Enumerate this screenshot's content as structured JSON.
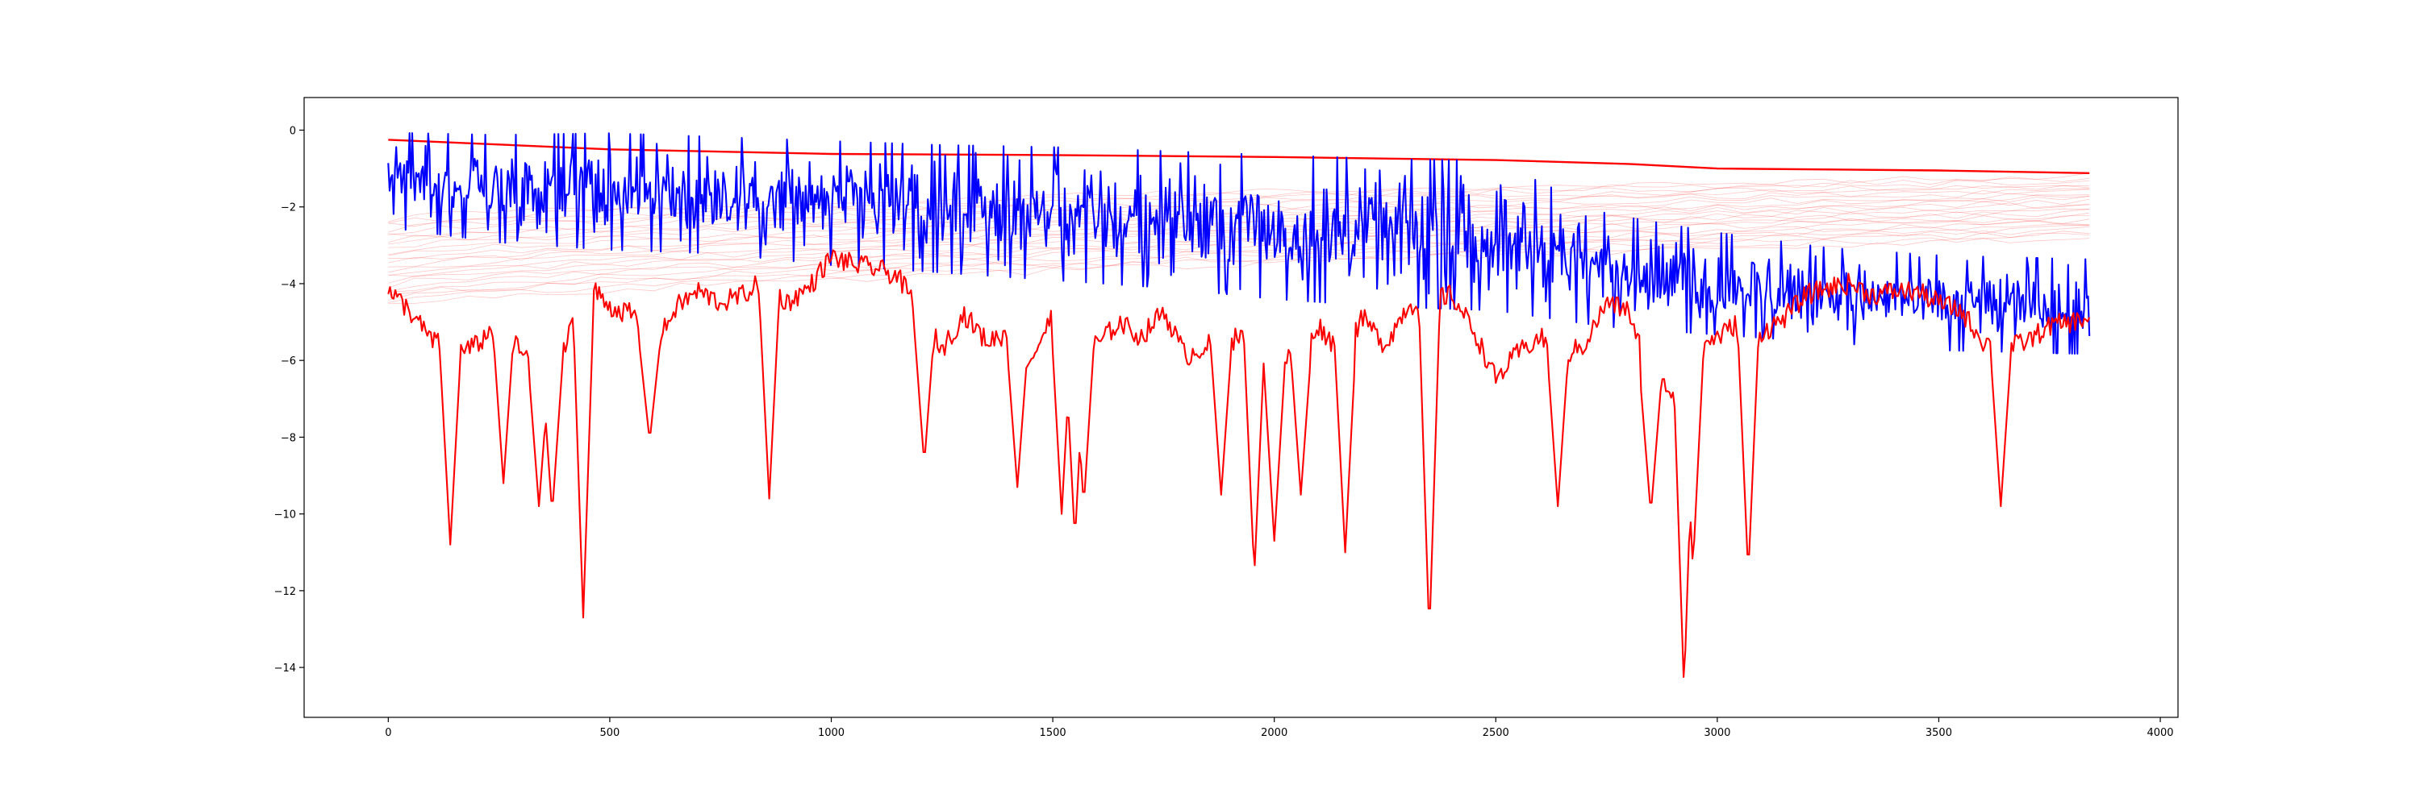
{
  "chart_data": {
    "type": "line",
    "title": "",
    "xlabel": "",
    "ylabel": "",
    "xlim": [
      -190,
      4040
    ],
    "ylim": [
      -15.3,
      0.85
    ],
    "x_ticks": [
      0,
      500,
      1000,
      1500,
      2000,
      2500,
      3000,
      3500,
      4000
    ],
    "y_ticks": [
      0,
      -2,
      -4,
      -6,
      -8,
      -10,
      -12,
      -14
    ],
    "x_tick_labels": [
      "0",
      "500",
      "1000",
      "1500",
      "2000",
      "2500",
      "3000",
      "3500",
      "4000"
    ],
    "y_tick_labels": [
      "0",
      "−2",
      "−4",
      "−6",
      "−8",
      "−10",
      "−12",
      "−14"
    ],
    "grid": false,
    "legend": "none",
    "x_range": [
      0,
      3840
    ],
    "series": [
      {
        "role": "faint-band",
        "color": "#ff0000",
        "style": "thin translucent lines",
        "count": 25,
        "x": [
          0,
          500,
          1000,
          1500,
          2000,
          2500,
          3000,
          3500,
          3840
        ],
        "start_range": [
          -2.3,
          -4.6
        ],
        "end_range": [
          -1.2,
          -2.8
        ]
      },
      {
        "role": "noisy-signal",
        "color": "#0000ff",
        "x": [
          0,
          250,
          500,
          750,
          1000,
          1250,
          1500,
          1750,
          2000,
          2250,
          2500,
          2750,
          3000,
          3250,
          3500,
          3840
        ],
        "upper": [
          0.0,
          -0.05,
          0.0,
          -0.1,
          -0.2,
          -0.3,
          -0.35,
          -0.45,
          -0.55,
          -0.65,
          -0.7,
          -2.1,
          -2.6,
          -3.0,
          -3.2,
          -3.3
        ],
        "lower": [
          -2.6,
          -3.0,
          -3.2,
          -3.3,
          -3.6,
          -3.8,
          -4.0,
          -4.2,
          -4.5,
          -4.7,
          -4.8,
          -5.2,
          -5.4,
          -5.6,
          -5.8,
          -5.9
        ]
      },
      {
        "role": "upper-envelope",
        "color": "#ff0000",
        "x": [
          0,
          500,
          1000,
          1500,
          2000,
          2500,
          2800,
          3000,
          3500,
          3840
        ],
        "values": [
          -0.25,
          -0.5,
          -0.62,
          -0.65,
          -0.7,
          -0.78,
          -0.88,
          -1.0,
          -1.05,
          -1.12
        ]
      },
      {
        "role": "lower-envelope",
        "color": "#ff0000",
        "x": [
          0,
          40,
          100,
          160,
          200,
          250,
          300,
          350,
          400,
          450,
          500,
          550,
          600,
          650,
          700,
          750,
          800,
          850,
          900,
          950,
          1000,
          1050,
          1100,
          1150,
          1200,
          1250,
          1300,
          1350,
          1400,
          1450,
          1500,
          1550,
          1600,
          1650,
          1700,
          1750,
          1800,
          1850,
          1900,
          1950,
          2000,
          2050,
          2100,
          2150,
          2200,
          2250,
          2300,
          2350,
          2400,
          2450,
          2500,
          2550,
          2600,
          2650,
          2700,
          2750,
          2800,
          2850,
          2900,
          2950,
          3000,
          3050,
          3100,
          3150,
          3200,
          3250,
          3300,
          3350,
          3400,
          3450,
          3500,
          3550,
          3600,
          3650,
          3700,
          3750,
          3800,
          3840
        ],
        "values": [
          -4.2,
          -4.6,
          -5.5,
          -5.8,
          -5.6,
          -5.0,
          -5.8,
          -6.2,
          -5.6,
          -4.0,
          -4.6,
          -4.8,
          -5.7,
          -4.6,
          -4.2,
          -4.5,
          -4.3,
          -3.9,
          -4.5,
          -4.1,
          -3.3,
          -3.5,
          -3.6,
          -3.8,
          -4.8,
          -5.7,
          -4.8,
          -5.5,
          -5.3,
          -6.0,
          -4.8,
          -5.2,
          -5.6,
          -5.0,
          -5.4,
          -4.7,
          -5.9,
          -5.6,
          -5.5,
          -5.2,
          -6.1,
          -5.8,
          -5.1,
          -5.8,
          -4.9,
          -5.6,
          -4.6,
          -4.4,
          -4.3,
          -5.2,
          -6.5,
          -5.8,
          -5.4,
          -5.9,
          -5.6,
          -4.5,
          -4.7,
          -6.5,
          -6.8,
          -5.6,
          -5.4,
          -5.0,
          -5.3,
          -4.9,
          -4.3,
          -4.1,
          -4.0,
          -4.3,
          -4.2,
          -4.2,
          -4.5,
          -4.7,
          -5.5,
          -5.7,
          -5.5,
          -5.1,
          -5.0,
          -4.9
        ]
      },
      {
        "role": "lower-envelope-dips",
        "color": "#ff0000",
        "points": [
          [
            140,
            -10.8
          ],
          [
            260,
            -9.2
          ],
          [
            340,
            -9.8
          ],
          [
            370,
            -10.0
          ],
          [
            440,
            -12.7
          ],
          [
            590,
            -8.1
          ],
          [
            860,
            -9.6
          ],
          [
            1210,
            -8.7
          ],
          [
            1420,
            -9.3
          ],
          [
            1520,
            -10.0
          ],
          [
            1550,
            -10.7
          ],
          [
            1570,
            -9.8
          ],
          [
            1880,
            -9.5
          ],
          [
            1955,
            -11.6
          ],
          [
            2000,
            -10.7
          ],
          [
            2060,
            -9.5
          ],
          [
            2160,
            -11.0
          ],
          [
            2350,
            -13.2
          ],
          [
            2640,
            -9.8
          ],
          [
            2850,
            -10.0
          ],
          [
            2925,
            -14.6
          ],
          [
            2945,
            -11.4
          ],
          [
            3070,
            -11.6
          ],
          [
            3640,
            -9.8
          ]
        ]
      }
    ]
  }
}
